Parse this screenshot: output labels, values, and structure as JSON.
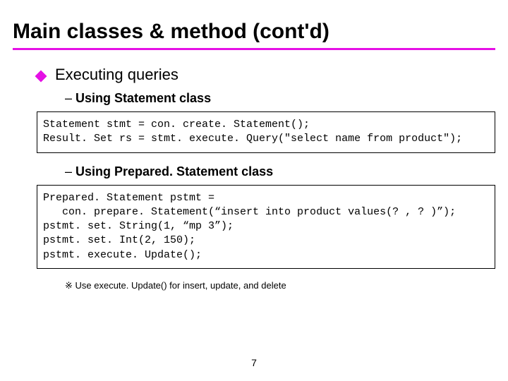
{
  "colors": {
    "accent": "#e510e5",
    "text": "#000000",
    "background": "#ffffff",
    "border": "#000000"
  },
  "title": "Main classes & method (cont'd)",
  "bullet1": "Executing queries",
  "sub1": "Using Statement class",
  "code1": "Statement stmt = con. create. Statement();\nResult. Set rs = stmt. execute. Query(\"select name from product\");",
  "sub2": "Using Prepared. Statement class",
  "code2": "Prepared. Statement pstmt =\n   con. prepare. Statement(“insert into product values(? , ? )”);\npstmt. set. String(1, “mp 3”);\npstmt. set. Int(2, 150);\npstmt. execute. Update();",
  "note": "※  Use execute. Update() for insert, update, and delete",
  "page_number": "7"
}
